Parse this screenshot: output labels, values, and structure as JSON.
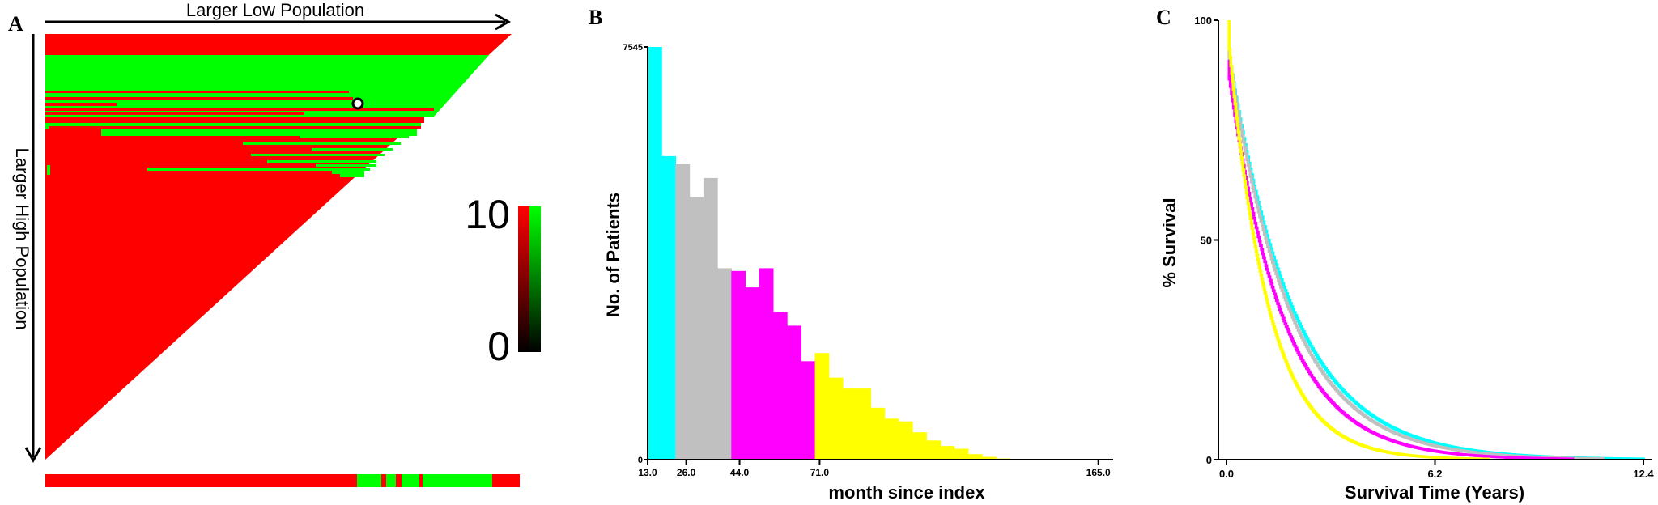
{
  "panels": {
    "a": {
      "label": "A"
    },
    "b": {
      "label": "B"
    },
    "c": {
      "label": "C"
    }
  },
  "chart_data": [
    {
      "type": "heatmap",
      "panel": "A",
      "title": "",
      "xlabel": "Larger Low Population",
      "ylabel": "Larger High Population",
      "colorbar": {
        "min_label": "0",
        "max_label": "10",
        "min": 0,
        "max": 10,
        "colors": [
          "#000000",
          "#ff0000",
          "#00ff00"
        ]
      },
      "colors": {
        "low": "#ff0000",
        "high": "#00ff00",
        "marker": "#000000"
      },
      "shape": "upper-left triangle",
      "marker": "white dot with black outline at the optimal cut"
    },
    {
      "type": "bar",
      "panel": "B",
      "title": "",
      "xlabel": "month since index",
      "ylabel": "No. of Patients",
      "x_ticks": [
        "13.0",
        "26.0",
        "44.0",
        "71.0",
        "165.0"
      ],
      "y_ticks": [
        "0",
        "7545"
      ],
      "ylim": [
        0,
        7545
      ],
      "bin_width_months": 4.7,
      "start_month": 13.0,
      "values": [
        7545,
        5550,
        5400,
        4800,
        5150,
        3500,
        3450,
        3150,
        3500,
        2700,
        2450,
        1800,
        1950,
        1500,
        1300,
        1300,
        950,
        750,
        700,
        500,
        350,
        250,
        200,
        100,
        50,
        20
      ],
      "colors": [
        "#00ffff",
        "#00ffff",
        "#c0c0c0",
        "#c0c0c0",
        "#c0c0c0",
        "#c0c0c0",
        "#ff00ff",
        "#ff00ff",
        "#ff00ff",
        "#ff00ff",
        "#ff00ff",
        "#ff00ff",
        "#ffff00",
        "#ffff00",
        "#ffff00",
        "#ffff00",
        "#ffff00",
        "#ffff00",
        "#ffff00",
        "#ffff00",
        "#ffff00",
        "#ffff00",
        "#ffff00",
        "#ffff00",
        "#ffff00",
        "#ffff00"
      ]
    },
    {
      "type": "line",
      "panel": "C",
      "title": "",
      "xlabel": "Survival Time (Years)",
      "ylabel": "% Survival",
      "x_ticks": [
        "0.0",
        "6.2",
        "12.4"
      ],
      "y_ticks": [
        "0",
        "50",
        "100"
      ],
      "xlim": [
        0,
        12.4
      ],
      "ylim": [
        0,
        100
      ],
      "series": [
        {
          "color": "#00ffff",
          "start": 95,
          "k": 0.52,
          "x_end": 12.4
        },
        {
          "color": "#c0c0c0",
          "start": 95,
          "k": 0.55,
          "x_end": 11.2
        },
        {
          "color": "#ff00ff",
          "start": 91,
          "k": 0.62,
          "x_end": 10.3
        },
        {
          "color": "#ffff00",
          "start": 100,
          "k": 0.85,
          "x_end": 7.8
        }
      ]
    }
  ]
}
